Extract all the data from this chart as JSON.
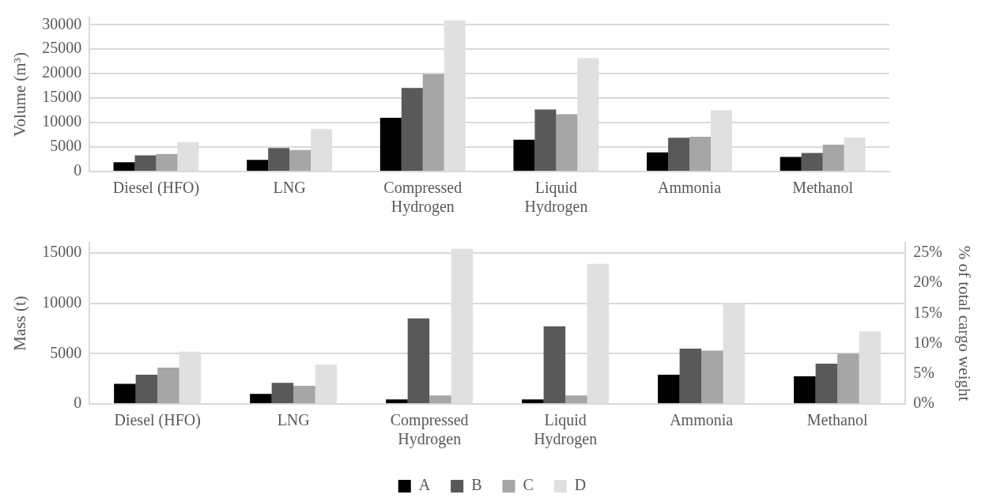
{
  "chart_data": [
    {
      "type": "bar",
      "ylabel": "Volume (m³)",
      "categories": [
        "Diesel (HFO)",
        "LNG",
        "Compressed Hydrogen",
        "Liquid Hydrogen",
        "Ammonia",
        "Methanol"
      ],
      "ylim": [
        0,
        31500
      ],
      "yticks": [
        0,
        5000,
        10000,
        15000,
        20000,
        25000,
        30000
      ],
      "grid": "y",
      "legend": false,
      "series": [
        {
          "color": "#000000",
          "values": [
            1900,
            2400,
            11000,
            6500,
            3900,
            3000
          ]
        },
        {
          "color": "#595959",
          "values": [
            3300,
            4800,
            17100,
            12700,
            6900,
            3800
          ]
        },
        {
          "color": "#a6a6a6",
          "values": [
            3600,
            4400,
            19900,
            11700,
            7100,
            5500
          ]
        },
        {
          "color": "#e0e0e0",
          "values": [
            6000,
            8700,
            30900,
            23200,
            12500,
            7000
          ]
        }
      ]
    },
    {
      "type": "bar",
      "ylabel": "Mass (t)",
      "y2label": "% of total cargo weight",
      "categories": [
        "Diesel (HFO)",
        "LNG",
        "Compressed Hydrogen",
        "Liquid Hydrogen",
        "Ammonia",
        "Methanol"
      ],
      "ylim": [
        0,
        16000
      ],
      "yticks": [
        0,
        5000,
        10000,
        15000
      ],
      "y2lim": [
        0,
        26.7
      ],
      "y2ticks": [
        {
          "value": 0,
          "label": "0%"
        },
        {
          "value": 5,
          "label": "5%"
        },
        {
          "value": 10,
          "label": "10%"
        },
        {
          "value": 15,
          "label": "15%"
        },
        {
          "value": 20,
          "label": "20%"
        },
        {
          "value": 25,
          "label": "25%"
        }
      ],
      "grid": "y",
      "legend": "bottom",
      "series": [
        {
          "name": "A",
          "color": "#000000",
          "values": [
            2000,
            1000,
            450,
            450,
            2900,
            2750
          ]
        },
        {
          "name": "B",
          "color": "#595959",
          "values": [
            2900,
            2100,
            8500,
            7700,
            5500,
            4000
          ]
        },
        {
          "name": "C",
          "color": "#a6a6a6",
          "values": [
            3600,
            1800,
            850,
            850,
            5300,
            5000
          ]
        },
        {
          "name": "D",
          "color": "#e0e0e0",
          "values": [
            5200,
            3900,
            15400,
            13900,
            10000,
            7200
          ]
        }
      ]
    }
  ]
}
